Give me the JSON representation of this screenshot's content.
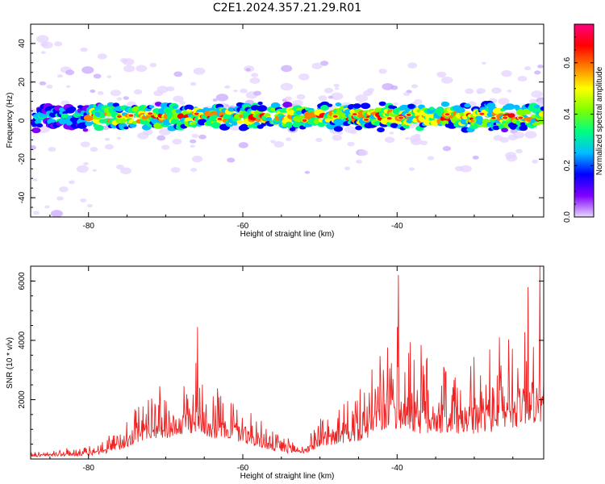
{
  "title": "C2E1.2024.357.21.29.R01",
  "spectrogram": {
    "type": "heatmap",
    "xlabel": "Height of straight line (km)",
    "ylabel": "Frequency (Hz)",
    "xlim": [
      -87.5,
      -21
    ],
    "ylim": [
      -50,
      50
    ],
    "x_ticks": [
      -80,
      -60,
      -40
    ],
    "y_ticks": [
      40,
      20,
      0,
      -20,
      -40
    ],
    "band_center_hz": 2,
    "band_half_width_hz": 6,
    "colorbar": {
      "label": "Normalized spectral amplitude",
      "range": [
        0.0,
        0.75
      ],
      "ticks": [
        "0.0",
        "0.2",
        "0.4",
        "0.6"
      ],
      "tick_values": [
        0.0,
        0.2,
        0.4,
        0.6
      ],
      "colormap": [
        "#e8d8ff",
        "#7f00ff",
        "#0000ff",
        "#00bfff",
        "#00ff7f",
        "#7fff00",
        "#ffff00",
        "#ff7f00",
        "#ff0000",
        "#ff007f"
      ]
    }
  },
  "snr": {
    "type": "line",
    "xlabel": "Height of straight line (km)",
    "ylabel": "SNR (10 * v/v)",
    "xlim": [
      -87.5,
      -21
    ],
    "ylim": [
      0,
      6500
    ],
    "x_ticks": [
      -80,
      -60,
      -40
    ],
    "y_ticks": [
      2000,
      4000,
      6000
    ],
    "line_color": "#ee2222",
    "x": [
      -87.5,
      -86,
      -84,
      -82,
      -80,
      -78,
      -76,
      -74,
      -72,
      -70,
      -68,
      -66,
      -64,
      -62,
      -60,
      -58,
      -56,
      -54,
      -52,
      -50,
      -48,
      -46,
      -44,
      -42,
      -40,
      -38,
      -36,
      -34,
      -32,
      -30,
      -28,
      -26,
      -24,
      -22,
      -21
    ],
    "envelope": [
      300,
      300,
      350,
      400,
      450,
      600,
      1200,
      1800,
      2400,
      2500,
      2700,
      3600,
      2600,
      2400,
      2100,
      1500,
      900,
      700,
      600,
      1500,
      1800,
      2000,
      2600,
      3800,
      4500,
      4200,
      3600,
      3700,
      3400,
      3600,
      3900,
      4500,
      4900,
      5200,
      4300
    ],
    "baseline": [
      80,
      80,
      90,
      100,
      120,
      150,
      300,
      500,
      700,
      700,
      750,
      900,
      700,
      650,
      550,
      400,
      250,
      200,
      180,
      400,
      500,
      550,
      650,
      900,
      1000,
      900,
      800,
      850,
      800,
      850,
      900,
      1000,
      1100,
      1200,
      1000
    ],
    "peaks": [
      [
        -65.9,
        4450
      ],
      [
        -39.8,
        6200
      ],
      [
        -21.5,
        6500
      ],
      [
        -23,
        5800
      ]
    ]
  }
}
